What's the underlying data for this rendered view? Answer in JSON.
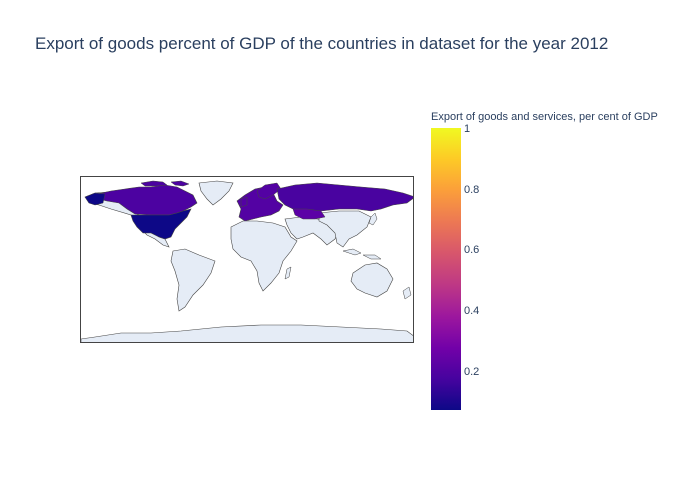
{
  "title": "Export of goods percent of GDP of the countries in dataset for the year 2012",
  "colorbar": {
    "title": "Export of goods and services, per cent of GDP",
    "ticks": [
      "1",
      "0.8",
      "0.6",
      "0.4",
      "0.2"
    ],
    "range": [
      0.07,
      1
    ],
    "colorscale": "Plasma"
  },
  "map": {
    "projection": "equirectangular",
    "land_color": "#e5ecf6",
    "border_color": "#444444",
    "regions": [
      {
        "name": "United States",
        "color": "#0d0887"
      },
      {
        "name": "Canada",
        "color": "#4c02a1"
      },
      {
        "name": "Greenland",
        "color": "#e5ecf6"
      },
      {
        "name": "Europe",
        "color": "#5302a3"
      },
      {
        "name": "Russia",
        "color": "#4903a0"
      },
      {
        "name": "Central Asia",
        "color": "#5c01a6"
      }
    ]
  }
}
